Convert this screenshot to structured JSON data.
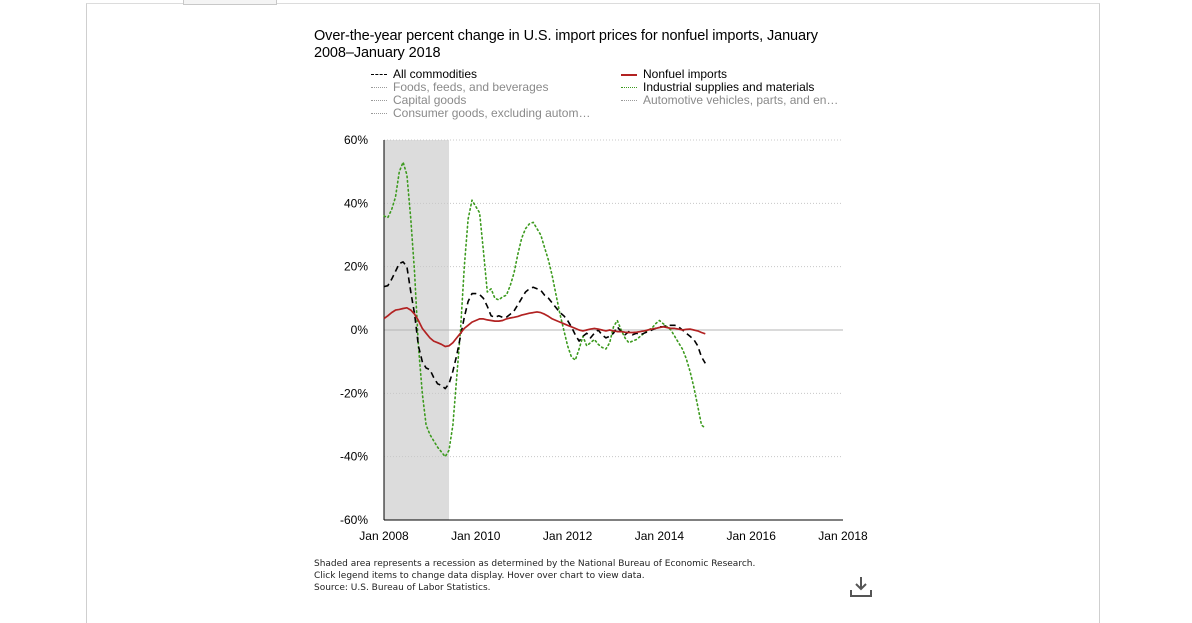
{
  "chart_data": {
    "type": "line",
    "title": "Over-the-year percent change in U.S. import prices for nonfuel imports, January 2008–January 2018",
    "title_lines": [
      "Over-the-year percent change in U.S. import prices for nonfuel imports, January",
      "2008–January 2018"
    ],
    "ylim": [
      -60,
      60
    ],
    "yticks": [
      60,
      40,
      20,
      0,
      -20,
      -40,
      -60
    ],
    "ytick_labels": [
      "60%",
      "40%",
      "20%",
      "0%",
      "-20%",
      "-40%",
      "-60%"
    ],
    "xlim": [
      "2008-01",
      "2018-01"
    ],
    "xtick_labels": [
      "Jan 2008",
      "Jan 2010",
      "Jan 2012",
      "Jan 2014",
      "Jan 2016",
      "Jan 2018"
    ],
    "grid": true,
    "legend_position": "top",
    "recession_shading": {
      "start": "2008-01",
      "end": "2009-06"
    },
    "series": [
      {
        "name": "All commodities",
        "visible": true,
        "style": "dashed",
        "color": "#000000",
        "points": [
          [
            "2008-01",
            13.7
          ],
          [
            "2008-02",
            14.0
          ],
          [
            "2008-03",
            16.0
          ],
          [
            "2008-04",
            18.5
          ],
          [
            "2008-05",
            21.0
          ],
          [
            "2008-06",
            21.5
          ],
          [
            "2008-07",
            20.0
          ],
          [
            "2008-08",
            12.0
          ],
          [
            "2008-09",
            5.0
          ],
          [
            "2008-10",
            -5.0
          ],
          [
            "2008-11",
            -10.0
          ],
          [
            "2008-12",
            -12.0
          ],
          [
            "2009-01",
            -12.5
          ],
          [
            "2009-02",
            -15.0
          ],
          [
            "2009-03",
            -17.0
          ],
          [
            "2009-04",
            -17.5
          ],
          [
            "2009-05",
            -18.5
          ],
          [
            "2009-06",
            -17.0
          ],
          [
            "2009-07",
            -13.0
          ],
          [
            "2009-08",
            -8.0
          ],
          [
            "2009-09",
            -2.0
          ],
          [
            "2009-10",
            4.0
          ],
          [
            "2009-11",
            9.0
          ],
          [
            "2009-12",
            11.5
          ],
          [
            "2010-01",
            11.5
          ],
          [
            "2010-02",
            11.2
          ],
          [
            "2010-03",
            10.0
          ],
          [
            "2010-04",
            7.5
          ],
          [
            "2010-05",
            4.5
          ],
          [
            "2010-06",
            4.0
          ],
          [
            "2010-07",
            4.5
          ],
          [
            "2010-08",
            4.0
          ],
          [
            "2010-09",
            4.0
          ],
          [
            "2010-10",
            5.0
          ],
          [
            "2010-11",
            6.0
          ],
          [
            "2010-12",
            8.0
          ],
          [
            "2011-01",
            10.0
          ],
          [
            "2011-02",
            12.0
          ],
          [
            "2011-03",
            13.0
          ],
          [
            "2011-04",
            13.5
          ],
          [
            "2011-05",
            13.0
          ],
          [
            "2011-06",
            12.5
          ],
          [
            "2011-07",
            11.0
          ],
          [
            "2011-08",
            10.0
          ],
          [
            "2011-09",
            8.5
          ],
          [
            "2011-10",
            7.0
          ],
          [
            "2011-11",
            5.5
          ],
          [
            "2011-12",
            4.5
          ],
          [
            "2012-01",
            3.0
          ],
          [
            "2012-02",
            1.0
          ],
          [
            "2012-03",
            -1.5
          ],
          [
            "2012-04",
            -3.5
          ],
          [
            "2012-05",
            -2.0
          ],
          [
            "2012-06",
            -1.0
          ],
          [
            "2012-07",
            -2.5
          ],
          [
            "2012-08",
            -1.0
          ],
          [
            "2012-09",
            0.0
          ],
          [
            "2012-10",
            -1.5
          ],
          [
            "2012-11",
            -2.5
          ],
          [
            "2012-12",
            -2.0
          ],
          [
            "2013-01",
            -1.0
          ],
          [
            "2013-02",
            1.0
          ],
          [
            "2013-03",
            -0.5
          ],
          [
            "2013-04",
            -1.5
          ],
          [
            "2013-05",
            -0.5
          ],
          [
            "2013-06",
            -1.5
          ],
          [
            "2013-07",
            -1.0
          ],
          [
            "2013-08",
            -1.5
          ],
          [
            "2013-09",
            -1.0
          ],
          [
            "2013-10",
            -0.5
          ],
          [
            "2013-11",
            0.0
          ],
          [
            "2013-12",
            0.5
          ],
          [
            "2014-01",
            1.0
          ],
          [
            "2014-02",
            1.0
          ],
          [
            "2014-03",
            1.5
          ],
          [
            "2014-04",
            1.5
          ],
          [
            "2014-05",
            1.5
          ],
          [
            "2014-06",
            1.0
          ],
          [
            "2014-07",
            0.0
          ],
          [
            "2014-08",
            -1.0
          ],
          [
            "2014-09",
            -2.0
          ],
          [
            "2014-10",
            -3.0
          ],
          [
            "2014-11",
            -5.0
          ],
          [
            "2014-12",
            -8.5
          ],
          [
            "2015-01",
            -10.5
          ]
        ]
      },
      {
        "name": "Nonfuel imports",
        "visible": true,
        "style": "solid",
        "color": "#b22222",
        "points": [
          [
            "2008-01",
            3.6
          ],
          [
            "2008-02",
            4.5
          ],
          [
            "2008-03",
            5.5
          ],
          [
            "2008-04",
            6.3
          ],
          [
            "2008-05",
            6.5
          ],
          [
            "2008-06",
            6.8
          ],
          [
            "2008-07",
            7.0
          ],
          [
            "2008-08",
            6.3
          ],
          [
            "2008-09",
            5.0
          ],
          [
            "2008-10",
            3.0
          ],
          [
            "2008-11",
            0.5
          ],
          [
            "2008-12",
            -1.0
          ],
          [
            "2009-01",
            -2.5
          ],
          [
            "2009-02",
            -3.5
          ],
          [
            "2009-03",
            -4.0
          ],
          [
            "2009-04",
            -4.5
          ],
          [
            "2009-05",
            -5.2
          ],
          [
            "2009-06",
            -5.0
          ],
          [
            "2009-07",
            -4.0
          ],
          [
            "2009-08",
            -2.5
          ],
          [
            "2009-09",
            -1.0
          ],
          [
            "2009-10",
            0.5
          ],
          [
            "2009-11",
            1.5
          ],
          [
            "2009-12",
            2.5
          ],
          [
            "2010-01",
            3.0
          ],
          [
            "2010-02",
            3.5
          ],
          [
            "2010-03",
            3.5
          ],
          [
            "2010-04",
            3.2
          ],
          [
            "2010-05",
            3.0
          ],
          [
            "2010-06",
            2.8
          ],
          [
            "2010-07",
            2.8
          ],
          [
            "2010-08",
            3.0
          ],
          [
            "2010-09",
            3.5
          ],
          [
            "2010-10",
            3.8
          ],
          [
            "2010-11",
            4.0
          ],
          [
            "2010-12",
            4.3
          ],
          [
            "2011-01",
            4.7
          ],
          [
            "2011-02",
            5.0
          ],
          [
            "2011-03",
            5.3
          ],
          [
            "2011-04",
            5.5
          ],
          [
            "2011-05",
            5.7
          ],
          [
            "2011-06",
            5.5
          ],
          [
            "2011-07",
            5.0
          ],
          [
            "2011-08",
            4.3
          ],
          [
            "2011-09",
            3.5
          ],
          [
            "2011-10",
            3.0
          ],
          [
            "2011-11",
            2.5
          ],
          [
            "2011-12",
            2.0
          ],
          [
            "2012-01",
            1.5
          ],
          [
            "2012-02",
            1.0
          ],
          [
            "2012-03",
            0.5
          ],
          [
            "2012-04",
            0.0
          ],
          [
            "2012-05",
            -0.3
          ],
          [
            "2012-06",
            0.0
          ],
          [
            "2012-07",
            0.3
          ],
          [
            "2012-08",
            0.5
          ],
          [
            "2012-09",
            0.3
          ],
          [
            "2012-10",
            0.0
          ],
          [
            "2012-11",
            -0.3
          ],
          [
            "2012-12",
            0.0
          ],
          [
            "2013-01",
            -0.3
          ],
          [
            "2013-02",
            -0.5
          ],
          [
            "2013-03",
            -0.5
          ],
          [
            "2013-04",
            -0.7
          ],
          [
            "2013-05",
            -0.8
          ],
          [
            "2013-06",
            -0.8
          ],
          [
            "2013-07",
            -0.7
          ],
          [
            "2013-08",
            -0.5
          ],
          [
            "2013-09",
            -0.3
          ],
          [
            "2013-10",
            0.0
          ],
          [
            "2013-11",
            0.3
          ],
          [
            "2013-12",
            0.5
          ],
          [
            "2014-01",
            0.8
          ],
          [
            "2014-02",
            1.0
          ],
          [
            "2014-03",
            0.8
          ],
          [
            "2014-04",
            0.5
          ],
          [
            "2014-05",
            0.5
          ],
          [
            "2014-06",
            0.3
          ],
          [
            "2014-07",
            0.0
          ],
          [
            "2014-08",
            0.2
          ],
          [
            "2014-09",
            0.3
          ],
          [
            "2014-10",
            0.0
          ],
          [
            "2014-11",
            -0.3
          ],
          [
            "2014-12",
            -0.8
          ],
          [
            "2015-01",
            -1.2
          ]
        ]
      },
      {
        "name": "Foods, feeds, and beverages",
        "visible": false,
        "style": "dotted",
        "color": "#9a9a9a",
        "points": []
      },
      {
        "name": "Industrial supplies and materials",
        "visible": true,
        "style": "dotted",
        "color": "#3c9a1e",
        "points": [
          [
            "2008-01",
            36.0
          ],
          [
            "2008-02",
            35.5
          ],
          [
            "2008-03",
            38.0
          ],
          [
            "2008-04",
            42.0
          ],
          [
            "2008-05",
            50.0
          ],
          [
            "2008-06",
            53.0
          ],
          [
            "2008-07",
            49.0
          ],
          [
            "2008-08",
            35.0
          ],
          [
            "2008-09",
            18.0
          ],
          [
            "2008-10",
            -5.0
          ],
          [
            "2008-11",
            -20.0
          ],
          [
            "2008-12",
            -30.0
          ],
          [
            "2009-01",
            -33.0
          ],
          [
            "2009-02",
            -35.0
          ],
          [
            "2009-03",
            -37.0
          ],
          [
            "2009-04",
            -38.5
          ],
          [
            "2009-05",
            -40.0
          ],
          [
            "2009-06",
            -38.0
          ],
          [
            "2009-07",
            -30.0
          ],
          [
            "2009-08",
            -15.0
          ],
          [
            "2009-09",
            0.0
          ],
          [
            "2009-10",
            20.0
          ],
          [
            "2009-11",
            35.0
          ],
          [
            "2009-12",
            41.0
          ],
          [
            "2010-01",
            39.0
          ],
          [
            "2010-02",
            37.0
          ],
          [
            "2010-03",
            25.0
          ],
          [
            "2010-04",
            12.0
          ],
          [
            "2010-05",
            13.0
          ],
          [
            "2010-06",
            10.0
          ],
          [
            "2010-07",
            9.5
          ],
          [
            "2010-08",
            10.5
          ],
          [
            "2010-09",
            11.0
          ],
          [
            "2010-10",
            14.0
          ],
          [
            "2010-11",
            18.0
          ],
          [
            "2010-12",
            24.0
          ],
          [
            "2011-01",
            29.0
          ],
          [
            "2011-02",
            32.0
          ],
          [
            "2011-03",
            33.5
          ],
          [
            "2011-04",
            34.0
          ],
          [
            "2011-05",
            32.0
          ],
          [
            "2011-06",
            30.0
          ],
          [
            "2011-07",
            26.0
          ],
          [
            "2011-08",
            22.0
          ],
          [
            "2011-09",
            17.0
          ],
          [
            "2011-10",
            11.0
          ],
          [
            "2011-11",
            5.0
          ],
          [
            "2011-12",
            0.0
          ],
          [
            "2012-01",
            -5.0
          ],
          [
            "2012-02",
            -8.5
          ],
          [
            "2012-03",
            -9.5
          ],
          [
            "2012-04",
            -6.0
          ],
          [
            "2012-05",
            -2.0
          ],
          [
            "2012-06",
            -5.0
          ],
          [
            "2012-07",
            -4.0
          ],
          [
            "2012-08",
            -3.0
          ],
          [
            "2012-09",
            -4.5
          ],
          [
            "2012-10",
            -5.5
          ],
          [
            "2012-11",
            -6.0
          ],
          [
            "2012-12",
            -4.0
          ],
          [
            "2013-01",
            1.0
          ],
          [
            "2013-02",
            3.0
          ],
          [
            "2013-03",
            0.0
          ],
          [
            "2013-04",
            -2.5
          ],
          [
            "2013-05",
            -4.0
          ],
          [
            "2013-06",
            -3.5
          ],
          [
            "2013-07",
            -3.0
          ],
          [
            "2013-08",
            -2.0
          ],
          [
            "2013-09",
            -1.0
          ],
          [
            "2013-10",
            0.0
          ],
          [
            "2013-11",
            0.5
          ],
          [
            "2013-12",
            2.0
          ],
          [
            "2014-01",
            3.0
          ],
          [
            "2014-02",
            2.0
          ],
          [
            "2014-03",
            1.0
          ],
          [
            "2014-04",
            0.0
          ],
          [
            "2014-05",
            -2.0
          ],
          [
            "2014-06",
            -4.0
          ],
          [
            "2014-07",
            -6.0
          ],
          [
            "2014-08",
            -9.0
          ],
          [
            "2014-09",
            -13.0
          ],
          [
            "2014-10",
            -18.0
          ],
          [
            "2014-11",
            -24.0
          ],
          [
            "2014-12",
            -30.0
          ],
          [
            "2015-01",
            -31.0
          ]
        ]
      },
      {
        "name": "Capital goods",
        "visible": false,
        "style": "dotted",
        "color": "#9a9a9a",
        "points": []
      },
      {
        "name": "Automotive vehicles, parts, and en…",
        "visible": false,
        "style": "dotted",
        "color": "#9a9a9a",
        "points": []
      },
      {
        "name": "Consumer goods, excluding autom…",
        "visible": false,
        "style": "dotted",
        "color": "#9a9a9a",
        "points": []
      }
    ]
  },
  "notes": {
    "line1": "Shaded area represents a recession as determined by the National Bureau of Economic Research.",
    "line2": "Click legend items to change data display. Hover over chart to view data.",
    "line3": "Source: U.S. Bureau of Labor Statistics."
  },
  "icons": {
    "download": "download-icon"
  }
}
